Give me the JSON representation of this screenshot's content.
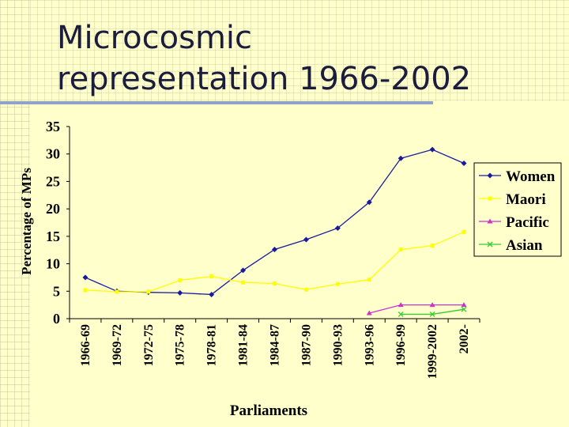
{
  "slide": {
    "title_line1": "Microcosmic",
    "title_line2": "representation 1966-2002"
  },
  "chart_data": {
    "type": "line",
    "title": "",
    "xlabel": "Parliaments",
    "ylabel": "Percentage of MPs",
    "ylim": [
      0,
      35
    ],
    "yticks": [
      0,
      5,
      10,
      15,
      20,
      25,
      30,
      35
    ],
    "grid": false,
    "legend_position": "right",
    "categories": [
      "1966-69",
      "1969-72",
      "1972-75",
      "1975-78",
      "1978-81",
      "1981-84",
      "1984-87",
      "1987-90",
      "1990-93",
      "1993-96",
      "1996-99",
      "1999-2002",
      "2002-"
    ],
    "series": [
      {
        "name": "Women",
        "color": "#1a1aa0",
        "marker": "diamond",
        "values": [
          7.5,
          5,
          4.8,
          4.7,
          4.4,
          8.8,
          12.6,
          14.4,
          16.5,
          21.2,
          29.2,
          30.8,
          28.3
        ]
      },
      {
        "name": "Maori",
        "color": "#ffff00",
        "marker": "square",
        "values": [
          5.2,
          4.9,
          4.9,
          7.0,
          7.7,
          6.6,
          6.4,
          5.3,
          6.3,
          7.1,
          12.6,
          13.3,
          15.8
        ]
      },
      {
        "name": "Pacific",
        "color": "#cc33cc",
        "marker": "triangle",
        "values": [
          null,
          null,
          null,
          null,
          null,
          null,
          null,
          null,
          null,
          1.0,
          2.5,
          2.5,
          2.5
        ]
      },
      {
        "name": "Asian",
        "color": "#33cc33",
        "marker": "x",
        "values": [
          null,
          null,
          null,
          null,
          null,
          null,
          null,
          null,
          null,
          null,
          0.8,
          0.8,
          1.7
        ]
      }
    ]
  }
}
